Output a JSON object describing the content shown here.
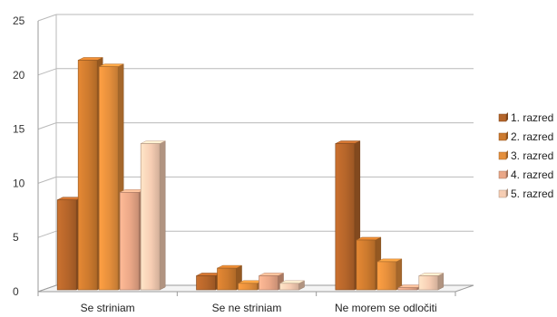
{
  "chart_data": {
    "type": "bar",
    "title": "",
    "xlabel": "",
    "ylabel": "",
    "ylim": [
      0,
      25
    ],
    "yticks": [
      0,
      5,
      10,
      15,
      20,
      25
    ],
    "grid": true,
    "legend_position": "right",
    "categories": [
      "Se striniam",
      "Se ne striniam",
      "Ne morem se odločiti"
    ],
    "series": [
      {
        "name": "1. razred",
        "color": "#b5652a",
        "values": [
          8.3,
          1.3,
          13.5
        ]
      },
      {
        "name": "2. razred",
        "color": "#cd7a2e",
        "values": [
          21.2,
          2.0,
          4.6
        ]
      },
      {
        "name": "3. razred",
        "color": "#e58f3c",
        "values": [
          20.6,
          0.6,
          2.6
        ]
      },
      {
        "name": "4. razred",
        "color": "#eaa787",
        "values": [
          9.0,
          1.3,
          0.2
        ]
      },
      {
        "name": "5. razred",
        "color": "#f6cdb3",
        "values": [
          13.5,
          0.6,
          1.3
        ]
      }
    ]
  }
}
